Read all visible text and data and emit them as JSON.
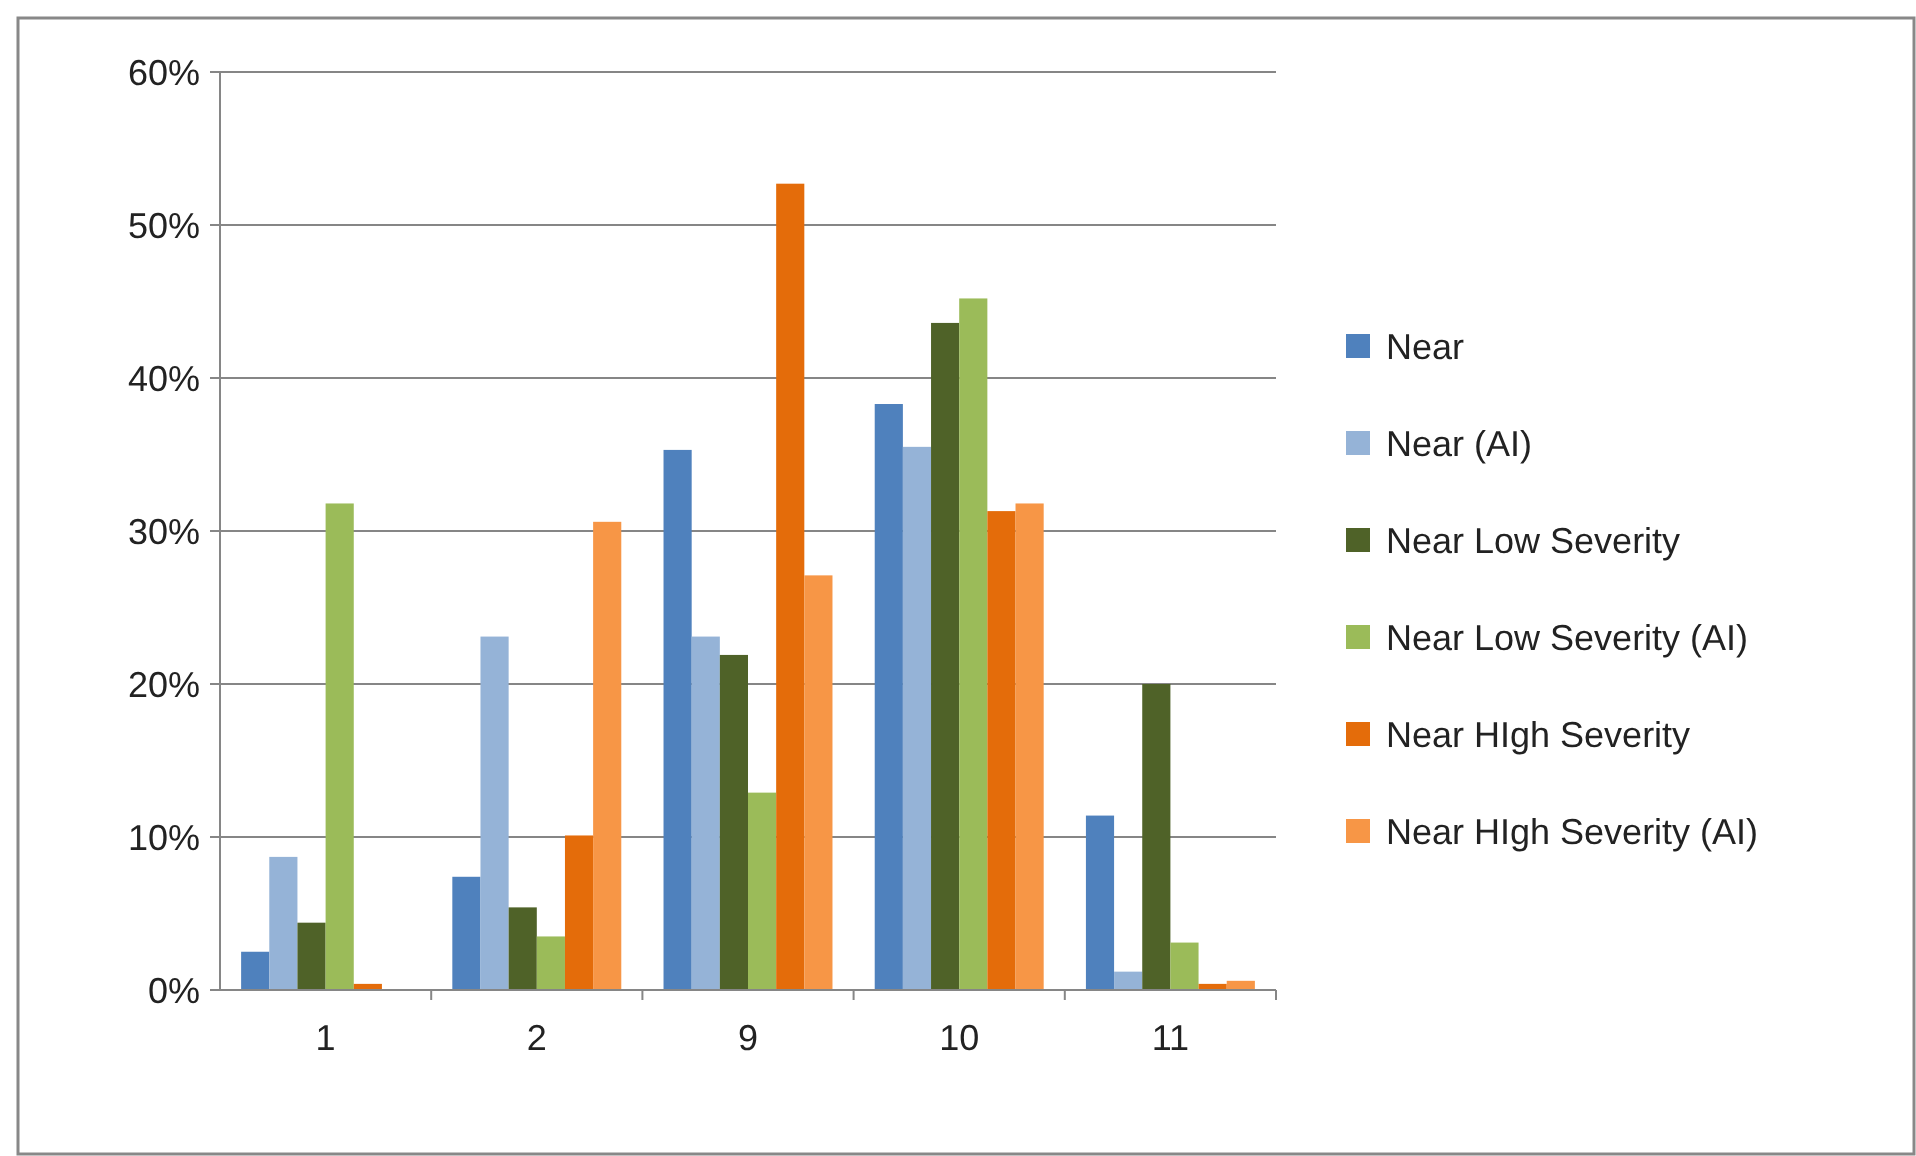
{
  "chart_data": {
    "type": "bar",
    "categories": [
      "1",
      "2",
      "9",
      "10",
      "11"
    ],
    "series": [
      {
        "name": "Near",
        "color": "#4f81bd",
        "values": [
          2.5,
          7.4,
          35.3,
          38.3,
          11.4
        ]
      },
      {
        "name": "Near (AI)",
        "color": "#95b3d7",
        "values": [
          8.7,
          23.1,
          23.1,
          35.5,
          1.2
        ]
      },
      {
        "name": "Near Low Severity",
        "color": "#4f6228",
        "values": [
          4.4,
          5.4,
          21.9,
          43.6,
          20
        ]
      },
      {
        "name": "Near Low Severity (AI)",
        "color": "#9bbb59",
        "values": [
          31.8,
          3.5,
          12.9,
          45.2,
          3.1
        ]
      },
      {
        "name": "Near HIgh Severity",
        "color": "#e46c0a",
        "values": [
          0.4,
          10.1,
          52.7,
          31.3,
          0.4
        ]
      },
      {
        "name": "Near HIgh Severity (AI)",
        "color": "#f79646",
        "values": [
          0,
          30.6,
          27.1,
          31.8,
          0.6
        ]
      }
    ],
    "ylim": [
      0,
      60
    ],
    "yticks": [
      {
        "value": 0,
        "label": "0%"
      },
      {
        "value": 10,
        "label": "10%"
      },
      {
        "value": 20,
        "label": "20%"
      },
      {
        "value": 30,
        "label": "30%"
      },
      {
        "value": 40,
        "label": "40%"
      },
      {
        "value": 50,
        "label": "50%"
      },
      {
        "value": 60,
        "label": "60%"
      }
    ],
    "grid": "y",
    "legend": "right"
  }
}
